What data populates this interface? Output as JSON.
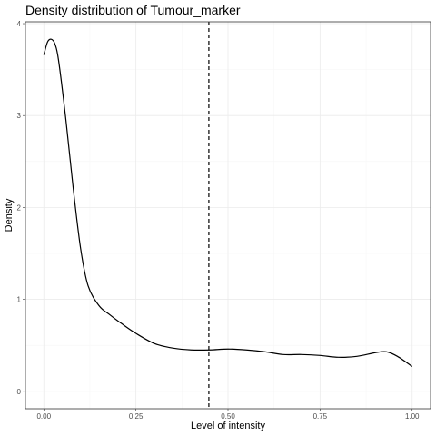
{
  "chart_data": {
    "type": "line",
    "title": "Density distribution of Tumour_marker",
    "xlabel": "Level of intensity",
    "ylabel": "Density",
    "xlim": [
      -0.05,
      1.05
    ],
    "ylim": [
      -0.19,
      4.02
    ],
    "x_ticks": [
      0.0,
      0.25,
      0.5,
      0.75,
      1.0
    ],
    "x_tick_labels": [
      "0.00",
      "0.25",
      "0.50",
      "0.75",
      "1.00"
    ],
    "y_ticks": [
      0,
      1,
      2,
      3,
      4
    ],
    "y_tick_labels": [
      "0",
      "1",
      "2",
      "3",
      "4"
    ],
    "grid": true,
    "legend": "none",
    "reference_line": {
      "x": 0.448,
      "style": "dashed"
    },
    "series": [
      {
        "x": [
          0.0,
          0.01,
          0.02,
          0.03,
          0.04,
          0.06,
          0.08,
          0.1,
          0.12,
          0.15,
          0.18,
          0.21,
          0.25,
          0.3,
          0.35,
          0.4,
          0.45,
          0.5,
          0.55,
          0.6,
          0.65,
          0.7,
          0.75,
          0.8,
          0.85,
          0.9,
          0.93,
          0.96,
          1.0
        ],
        "y": [
          3.66,
          3.8,
          3.83,
          3.78,
          3.6,
          2.95,
          2.2,
          1.55,
          1.15,
          0.93,
          0.83,
          0.74,
          0.63,
          0.52,
          0.47,
          0.45,
          0.45,
          0.46,
          0.45,
          0.43,
          0.4,
          0.4,
          0.39,
          0.37,
          0.38,
          0.42,
          0.43,
          0.38,
          0.27
        ]
      }
    ]
  }
}
